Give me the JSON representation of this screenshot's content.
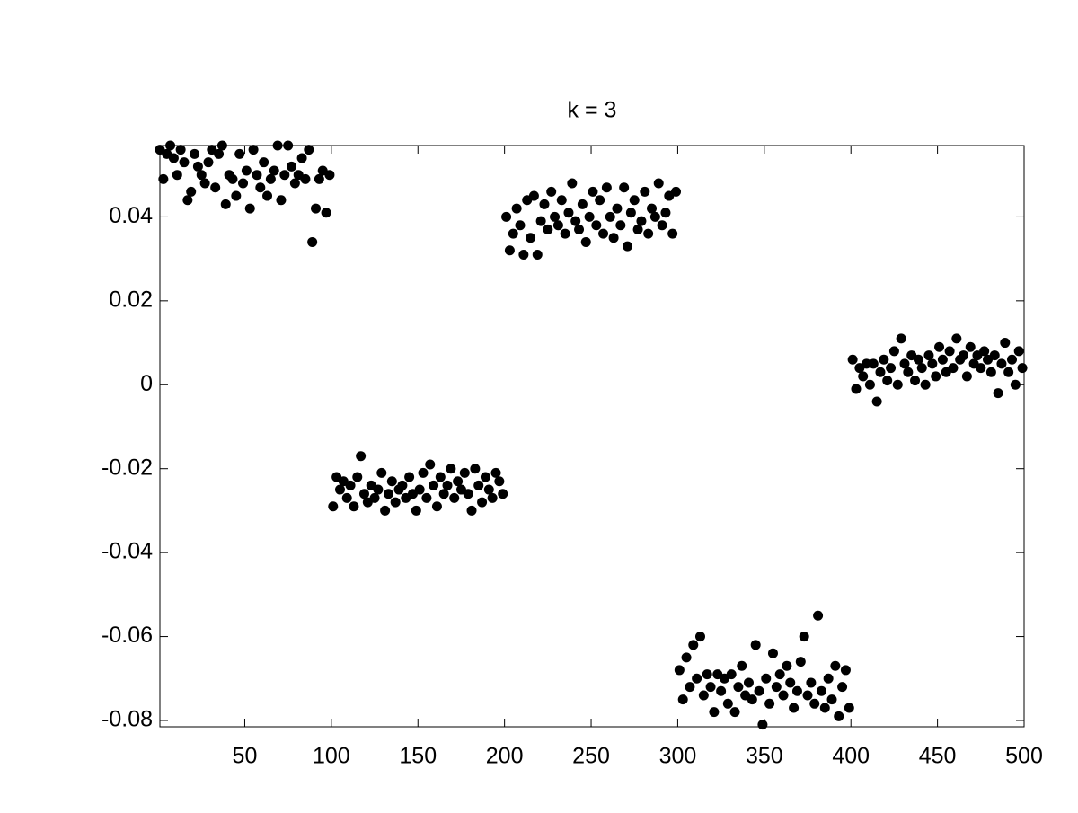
{
  "chart_data": {
    "type": "scatter",
    "title": "k = 3",
    "color": "#000000",
    "xlim": [
      1,
      500
    ],
    "ylim": [
      -0.0815,
      0.057
    ],
    "xticks": [
      50,
      100,
      150,
      200,
      250,
      300,
      350,
      400,
      450,
      500
    ],
    "yticks": [
      -0.08,
      -0.06,
      -0.04,
      -0.02,
      0,
      0.02,
      0.04
    ],
    "x": [
      1,
      3,
      5,
      7,
      9,
      11,
      13,
      15,
      17,
      19,
      21,
      23,
      25,
      27,
      29,
      31,
      33,
      35,
      37,
      39,
      41,
      43,
      45,
      47,
      49,
      51,
      53,
      55,
      57,
      59,
      61,
      63,
      65,
      67,
      69,
      71,
      73,
      75,
      77,
      79,
      81,
      83,
      85,
      87,
      89,
      91,
      93,
      95,
      97,
      99,
      101,
      103,
      105,
      107,
      109,
      111,
      113,
      115,
      117,
      119,
      121,
      123,
      125,
      127,
      129,
      131,
      133,
      135,
      137,
      139,
      141,
      143,
      145,
      147,
      149,
      151,
      153,
      155,
      157,
      159,
      161,
      163,
      165,
      167,
      169,
      171,
      173,
      175,
      177,
      179,
      181,
      183,
      185,
      187,
      189,
      191,
      193,
      195,
      197,
      199,
      201,
      203,
      205,
      207,
      209,
      211,
      213,
      215,
      217,
      219,
      221,
      223,
      225,
      227,
      229,
      231,
      233,
      235,
      237,
      239,
      241,
      243,
      245,
      247,
      249,
      251,
      253,
      255,
      257,
      259,
      261,
      263,
      265,
      267,
      269,
      271,
      273,
      275,
      277,
      279,
      281,
      283,
      285,
      287,
      289,
      291,
      293,
      295,
      297,
      299,
      301,
      303,
      305,
      307,
      309,
      311,
      313,
      315,
      317,
      319,
      321,
      323,
      325,
      327,
      329,
      331,
      333,
      335,
      337,
      339,
      341,
      343,
      345,
      347,
      349,
      351,
      353,
      355,
      357,
      359,
      361,
      363,
      365,
      367,
      369,
      371,
      373,
      375,
      377,
      379,
      381,
      383,
      385,
      387,
      389,
      391,
      393,
      395,
      397,
      399,
      401,
      403,
      405,
      407,
      409,
      411,
      413,
      415,
      417,
      419,
      421,
      423,
      425,
      427,
      429,
      431,
      433,
      435,
      437,
      439,
      441,
      443,
      445,
      447,
      449,
      451,
      453,
      455,
      457,
      459,
      461,
      463,
      465,
      467,
      469,
      471,
      473,
      475,
      477,
      479,
      481,
      483,
      485,
      487,
      489,
      491,
      493,
      495,
      497,
      499
    ],
    "values": [
      0.056,
      0.049,
      0.055,
      0.057,
      0.054,
      0.05,
      0.056,
      0.053,
      0.044,
      0.046,
      0.055,
      0.052,
      0.05,
      0.048,
      0.053,
      0.056,
      0.047,
      0.055,
      0.057,
      0.043,
      0.05,
      0.049,
      0.045,
      0.055,
      0.048,
      0.051,
      0.042,
      0.056,
      0.05,
      0.047,
      0.053,
      0.045,
      0.049,
      0.051,
      0.057,
      0.044,
      0.05,
      0.057,
      0.052,
      0.048,
      0.05,
      0.054,
      0.049,
      0.056,
      0.034,
      0.042,
      0.049,
      0.051,
      0.041,
      0.05,
      -0.029,
      -0.022,
      -0.025,
      -0.023,
      -0.027,
      -0.024,
      -0.029,
      -0.022,
      -0.017,
      -0.026,
      -0.028,
      -0.024,
      -0.027,
      -0.025,
      -0.021,
      -0.03,
      -0.026,
      -0.023,
      -0.028,
      -0.025,
      -0.024,
      -0.027,
      -0.022,
      -0.026,
      -0.03,
      -0.025,
      -0.021,
      -0.027,
      -0.019,
      -0.024,
      -0.029,
      -0.022,
      -0.026,
      -0.024,
      -0.02,
      -0.027,
      -0.023,
      -0.025,
      -0.021,
      -0.026,
      -0.03,
      -0.02,
      -0.024,
      -0.028,
      -0.022,
      -0.025,
      -0.027,
      -0.021,
      -0.023,
      -0.026,
      0.04,
      0.032,
      0.036,
      0.042,
      0.038,
      0.031,
      0.044,
      0.035,
      0.045,
      0.031,
      0.039,
      0.043,
      0.037,
      0.046,
      0.04,
      0.038,
      0.044,
      0.036,
      0.041,
      0.048,
      0.039,
      0.037,
      0.043,
      0.034,
      0.04,
      0.046,
      0.038,
      0.044,
      0.036,
      0.047,
      0.04,
      0.035,
      0.042,
      0.038,
      0.047,
      0.033,
      0.041,
      0.044,
      0.037,
      0.039,
      0.046,
      0.036,
      0.042,
      0.04,
      0.048,
      0.038,
      0.041,
      0.045,
      0.036,
      0.046,
      -0.068,
      -0.075,
      -0.065,
      -0.072,
      -0.062,
      -0.07,
      -0.06,
      -0.074,
      -0.069,
      -0.072,
      -0.078,
      -0.069,
      -0.073,
      -0.07,
      -0.076,
      -0.069,
      -0.078,
      -0.072,
      -0.067,
      -0.074,
      -0.071,
      -0.075,
      -0.062,
      -0.073,
      -0.081,
      -0.07,
      -0.076,
      -0.064,
      -0.072,
      -0.069,
      -0.074,
      -0.067,
      -0.071,
      -0.077,
      -0.073,
      -0.066,
      -0.06,
      -0.074,
      -0.071,
      -0.076,
      -0.055,
      -0.073,
      -0.077,
      -0.07,
      -0.075,
      -0.067,
      -0.079,
      -0.072,
      -0.068,
      -0.077,
      0.006,
      -0.001,
      0.004,
      0.002,
      0.005,
      0.0,
      0.005,
      -0.004,
      0.003,
      0.006,
      0.001,
      0.004,
      0.008,
      0.0,
      0.011,
      0.005,
      0.003,
      0.007,
      0.001,
      0.006,
      0.004,
      0.0,
      0.007,
      0.005,
      0.002,
      0.009,
      0.006,
      0.003,
      0.008,
      0.004,
      0.011,
      0.006,
      0.007,
      0.002,
      0.009,
      0.005,
      0.007,
      0.004,
      0.008,
      0.006,
      0.003,
      0.007,
      -0.002,
      0.005,
      0.01,
      0.003,
      0.006,
      0.0,
      0.008,
      0.004
    ]
  }
}
